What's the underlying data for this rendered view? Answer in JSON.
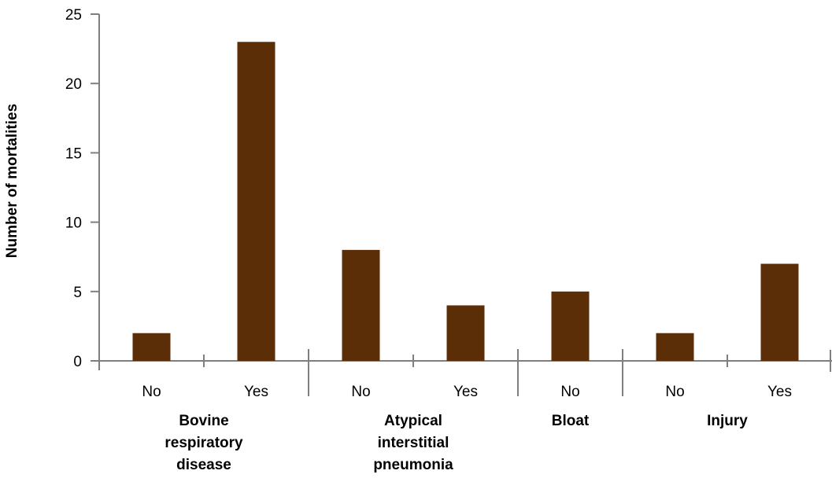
{
  "chart_data": {
    "type": "bar",
    "ylabel": "Number of mortalities",
    "ylim": [
      0,
      25
    ],
    "yticks": [
      0,
      5,
      10,
      15,
      20,
      25
    ],
    "grid": false,
    "bar_color": "#5c2e07",
    "axis_color": "#7f7f7f",
    "groups": [
      {
        "label": "Bovine respiratory disease",
        "lines": [
          "Bovine",
          "respiratory",
          "disease"
        ],
        "categories": [
          "No",
          "Yes"
        ],
        "values": [
          2,
          23
        ]
      },
      {
        "label": "Atypical interstitial pneumonia",
        "lines": [
          "Atypical",
          "interstitial",
          "pneumonia"
        ],
        "categories": [
          "No",
          "Yes"
        ],
        "values": [
          8,
          4
        ]
      },
      {
        "label": "Bloat",
        "lines": [
          "Bloat"
        ],
        "categories": [
          "No"
        ],
        "values": [
          5
        ]
      },
      {
        "label": "Injury",
        "lines": [
          "Injury"
        ],
        "categories": [
          "No",
          "Yes"
        ],
        "values": [
          2,
          7
        ]
      }
    ]
  }
}
